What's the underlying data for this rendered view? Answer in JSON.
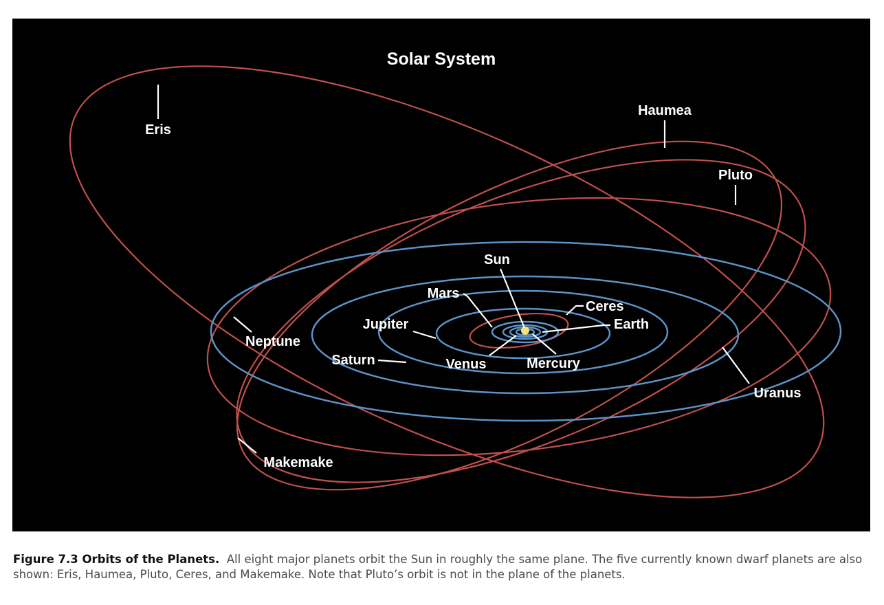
{
  "diagram": {
    "title": "Solar System",
    "labels": {
      "eris": "Eris",
      "haumea": "Haumea",
      "pluto": "Pluto",
      "sun": "Sun",
      "mars": "Mars",
      "ceres": "Ceres",
      "earth": "Earth",
      "jupiter": "Jupiter",
      "neptune": "Neptune",
      "saturn": "Saturn",
      "venus": "Venus",
      "mercury": "Mercury",
      "uranus": "Uranus",
      "makemake": "Makemake"
    },
    "colors": {
      "background": "#000000",
      "planet_orbit": "#5b93c8",
      "dwarf_orbit": "#c0504d",
      "sun": "#f5e27a",
      "label": "#ffffff"
    }
  },
  "caption": {
    "title": "Figure 7.3 Orbits of the Planets.",
    "text": "All eight major planets orbit the Sun in roughly the same plane. The five currently known dwarf planets are also shown: Eris, Haumea, Pluto, Ceres, and Makemake. Note that Pluto’s orbit is not in the plane of the planets."
  }
}
